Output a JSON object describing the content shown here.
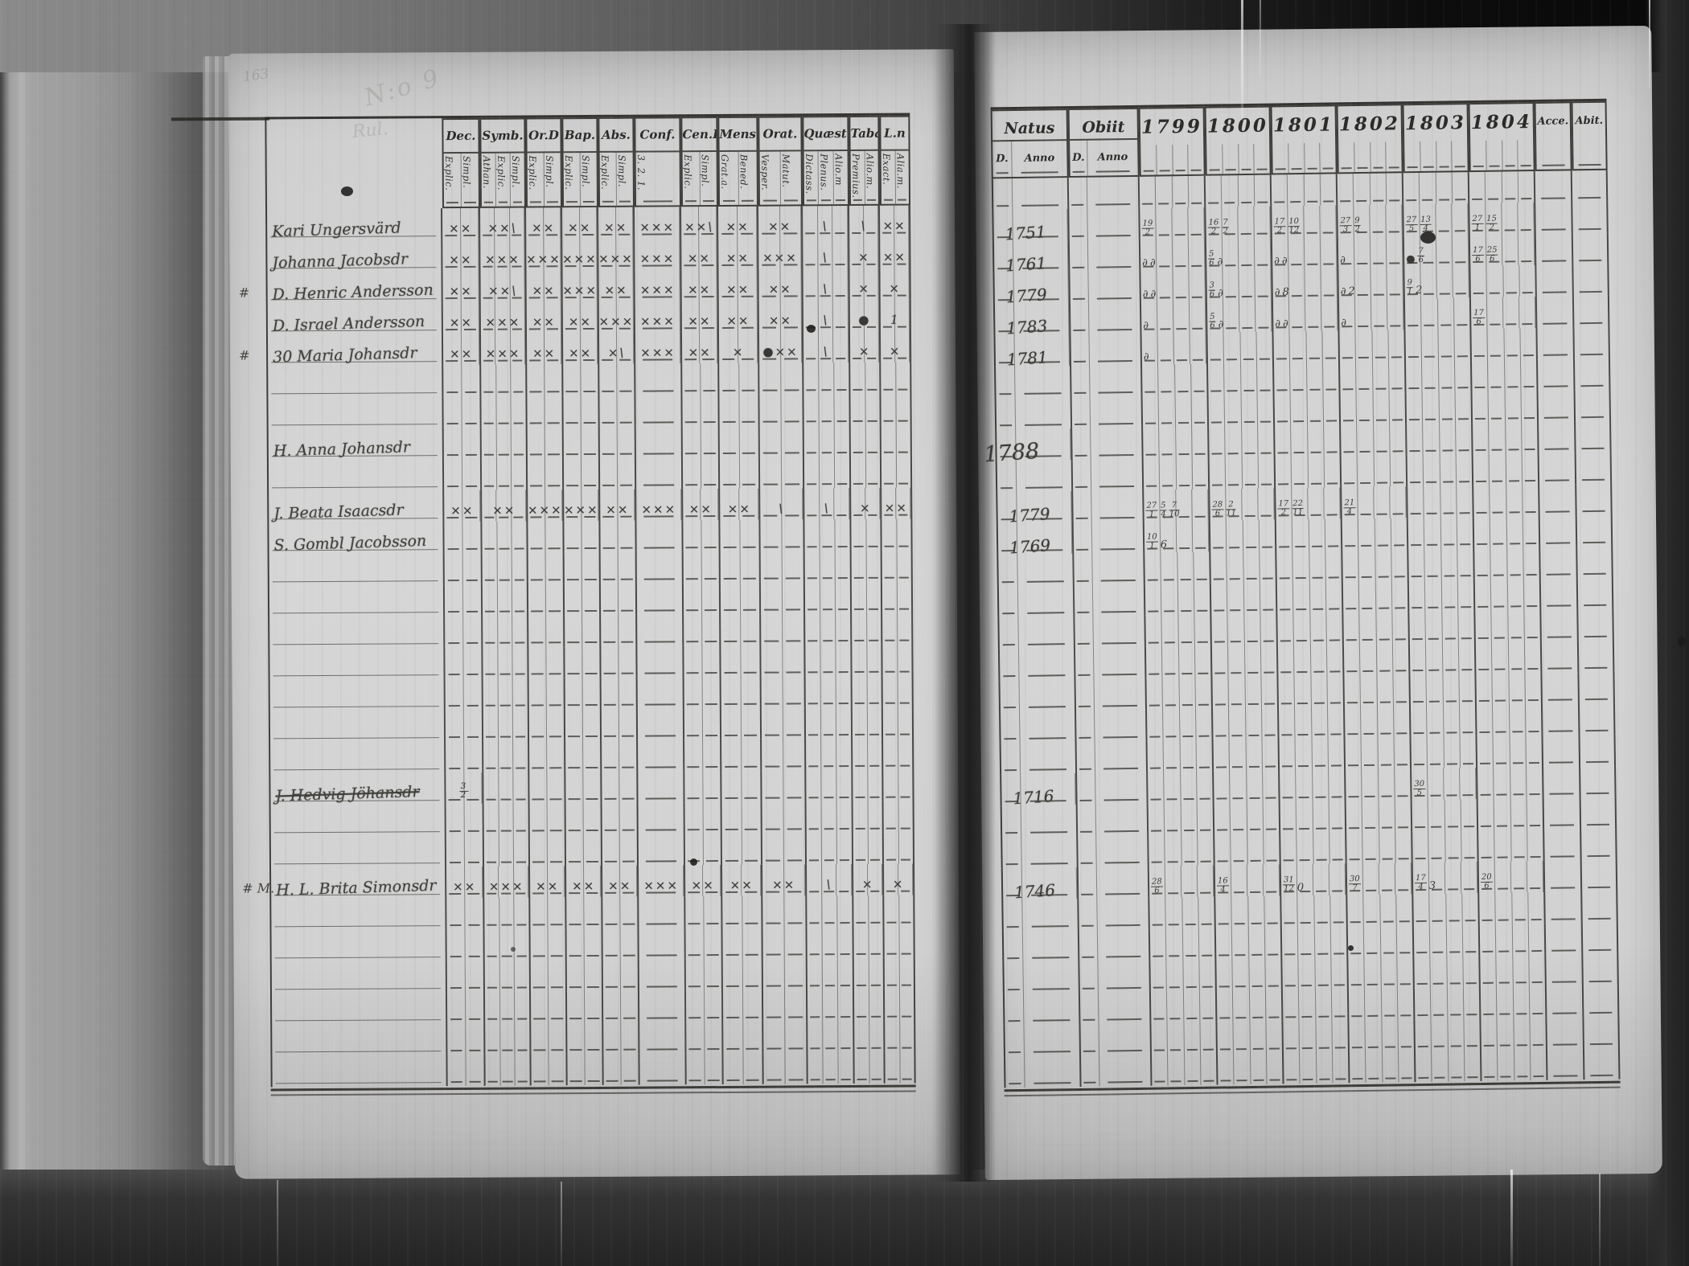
{
  "film": {
    "pencil_notes": {
      "page_number": "163",
      "note_top": "N:o 9",
      "note_mid": "Rul."
    }
  },
  "left_page": {
    "columns": [
      {
        "label": "Dec.",
        "subs": [
          "Explic.",
          "Simpl."
        ]
      },
      {
        "label": "Symb.",
        "subs": [
          "Athan.",
          "Explic.",
          "Simpl."
        ]
      },
      {
        "label": "Or.D",
        "subs": [
          "Explic.",
          "Simpl."
        ]
      },
      {
        "label": "Bap.",
        "subs": [
          "Explic.",
          "Simpl."
        ]
      },
      {
        "label": "Abs.",
        "subs": [
          "Explic.",
          "Simpl."
        ]
      },
      {
        "label": "Conf.",
        "subs": [
          "3. 2. 1."
        ]
      },
      {
        "label": "Cen.D",
        "subs": [
          "Explic.",
          "Simpl."
        ]
      },
      {
        "label": "Mens.",
        "subs": [
          "Grat.a.",
          "Bened."
        ]
      },
      {
        "label": "Orat.",
        "subs": [
          "Vesper.",
          "Matut."
        ]
      },
      {
        "label": "Quæst.",
        "subs": [
          "Dictass.",
          "Plenus.",
          "Alio.m"
        ]
      },
      {
        "label": "Tabæ",
        "subs": [
          "Premius.",
          "Alio.m."
        ]
      },
      {
        "label": "L.n",
        "subs": [
          "Exact.",
          "Alia.m."
        ]
      }
    ],
    "rows": [
      {
        "name": "Kari Ungersvärd",
        "marks": [
          "××",
          "××\\",
          "××",
          "××",
          "××",
          "×××",
          "××\\",
          "××",
          "××",
          "\\",
          "\\",
          "××"
        ]
      },
      {
        "name": "Johanna Jacobsdr",
        "marks": [
          "××",
          "×××",
          "×××",
          "×××",
          "×××",
          "×××",
          "××",
          "××",
          "×××",
          "\\",
          "×",
          "××"
        ]
      },
      {
        "prefix": "#",
        "name": "D. Henric Andersson",
        "marks": [
          "××",
          "××\\",
          "××",
          "×××",
          "××",
          "×××",
          "××",
          "××",
          "××",
          "\\",
          "×",
          "×"
        ]
      },
      {
        "name": "D. Israel Andersson",
        "marks": [
          "××",
          "×××",
          "××",
          "××",
          "×××",
          "×××",
          "××",
          "××",
          "××",
          "\\",
          "●",
          "1"
        ]
      },
      {
        "prefix": "#",
        "name": "30 Maria Johansdr",
        "marks": [
          "××",
          "×××",
          "××",
          "××",
          "×\\",
          "×××",
          "××",
          "×",
          "●××",
          "\\",
          "×",
          "×"
        ]
      },
      {},
      {},
      {
        "name": "H. Anna Johansdr"
      },
      {},
      {
        "name": "J. Beata Isaacsdr",
        "marks": [
          "××",
          "××",
          "×××",
          "×××",
          "××",
          "×××",
          "××",
          "××",
          "\\",
          "\\",
          "×",
          "××"
        ]
      },
      {
        "name": "S. Gombl Jacobsson"
      },
      {},
      {},
      {},
      {},
      {},
      {},
      {},
      {
        "name": "J. Hedvig Jöhansdr",
        "struck": true,
        "marks": [
          "3/2",
          "",
          "",
          "",
          "",
          "",
          "",
          "",
          "",
          "",
          "",
          ""
        ]
      },
      {},
      {},
      {
        "prefix": "# M.",
        "name": "H. L. Brita Simonsdr",
        "marks": [
          "××",
          "×××",
          "××",
          "××",
          "××",
          "×××",
          "××",
          "××",
          "××",
          "\\",
          "×",
          "×"
        ]
      },
      {},
      {},
      {},
      {},
      {},
      {}
    ]
  },
  "right_page": {
    "columns": [
      {
        "label": "Natus",
        "subs": [
          "D.",
          "Anno"
        ]
      },
      {
        "label": "Obiit",
        "subs": [
          "D.",
          "Anno"
        ]
      },
      {
        "label": "1799",
        "subs": [
          "",
          "",
          "",
          ""
        ]
      },
      {
        "label": "1800",
        "subs": [
          "",
          "",
          "",
          ""
        ]
      },
      {
        "label": "1801",
        "subs": [
          "",
          "",
          "",
          ""
        ]
      },
      {
        "label": "1802",
        "subs": [
          "",
          "",
          "",
          ""
        ]
      },
      {
        "label": "1803",
        "subs": [
          "",
          "",
          "",
          ""
        ]
      },
      {
        "label": "1804",
        "subs": [
          "",
          "",
          "",
          ""
        ]
      },
      {
        "label": "Acce.",
        "subs": [
          ""
        ]
      },
      {
        "label": "Abit.",
        "subs": [
          ""
        ]
      }
    ],
    "rows": [
      {},
      {
        "anno": "1751",
        "years": [
          [
            "19/2"
          ],
          [
            "16/2",
            "7/2"
          ],
          [
            "17/2",
            "10/12"
          ],
          [
            "27/3",
            "9/2"
          ],
          [
            "27/5",
            "13/4"
          ],
          [
            "27/1",
            "15/2"
          ]
        ]
      },
      {
        "anno": "1761",
        "years": [
          [
            "∂",
            "∂"
          ],
          [
            "5/6",
            "∂"
          ],
          [
            "∂",
            "∂"
          ],
          [
            "∂"
          ],
          [
            "●",
            "7/6"
          ],
          [
            "17/6",
            "25/6"
          ]
        ]
      },
      {
        "anno": "1779",
        "years": [
          [
            "∂",
            "∂"
          ],
          [
            "3/6",
            "∂"
          ],
          [
            "∂",
            "8"
          ],
          [
            "∂",
            "2"
          ],
          [
            "9/1",
            "2"
          ],
          []
        ]
      },
      {
        "anno": "1783",
        "years": [
          [
            "∂"
          ],
          [
            "5/6",
            "∂"
          ],
          [
            "∂",
            "∂"
          ],
          [
            "∂"
          ],
          [],
          [
            "17/6"
          ]
        ]
      },
      {
        "anno": "1781",
        "years": [
          [
            "∂"
          ],
          [],
          [],
          [],
          [],
          []
        ]
      },
      {},
      {},
      {
        "anno": "1788",
        "big": true
      },
      {},
      {
        "anno": "1779",
        "years": [
          [
            "27/1",
            "5/4",
            "7/10"
          ],
          [
            "28/6",
            "2/11"
          ],
          [
            "17/2",
            "22/11"
          ],
          [
            "21/4"
          ],
          [],
          []
        ]
      },
      {
        "anno": "1769",
        "years": [
          [
            "10/1",
            "6"
          ],
          [],
          [],
          [],
          [],
          []
        ]
      },
      {},
      {},
      {},
      {},
      {},
      {},
      {},
      {
        "anno": "1716",
        "years": [
          [],
          [],
          [],
          [],
          [
            "30/5"
          ],
          []
        ]
      },
      {},
      {},
      {
        "anno": "1746",
        "years": [
          [
            "28/6"
          ],
          [
            "16/4"
          ],
          [
            "31/12",
            "0"
          ],
          [
            "30/7"
          ],
          [
            "17/4",
            "3"
          ],
          [
            "20/6"
          ]
        ]
      },
      {},
      {},
      {},
      {},
      {},
      {}
    ]
  }
}
